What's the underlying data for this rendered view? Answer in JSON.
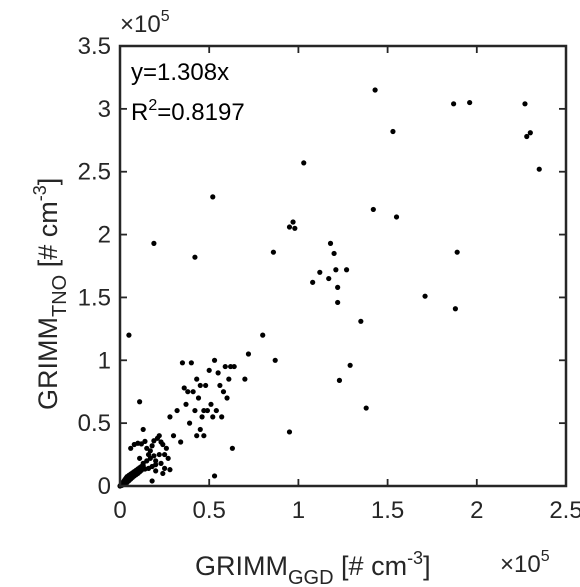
{
  "chart_data": {
    "type": "scatter",
    "title": "",
    "xlabel": {
      "main": "GRIMM",
      "sub": "GGD",
      "unit_pre": " [# cm",
      "unit_sup": "-3",
      "unit_post": "]"
    },
    "ylabel": {
      "main": "GRIMM",
      "sub": "TNO",
      "unit_pre": " [# cm",
      "unit_sup": "-3",
      "unit_post": "]"
    },
    "x_multiplier": {
      "base": "×10",
      "exp": "5"
    },
    "y_multiplier": {
      "base": "×10",
      "exp": "5"
    },
    "xlim": [
      0,
      250000
    ],
    "ylim": [
      0,
      350000
    ],
    "x_ticks": [
      0,
      50000,
      100000,
      150000,
      200000,
      250000
    ],
    "y_ticks": [
      0,
      50000,
      100000,
      150000,
      200000,
      250000,
      300000,
      350000
    ],
    "x_tick_labels": [
      "0",
      "0.5",
      "1",
      "1.5",
      "2",
      "2.5"
    ],
    "y_tick_labels": [
      "0",
      "0.5",
      "1",
      "1.5",
      "2",
      "2.5",
      "3",
      "3.5"
    ],
    "annotation_fit": "y=1.308x",
    "annotation_r2": {
      "pre": "R",
      "sup": "2",
      "post": "=0.8197"
    },
    "grid": false,
    "points": [
      [
        0,
        0
      ],
      [
        500,
        800
      ],
      [
        1000,
        1500
      ],
      [
        1500,
        2500
      ],
      [
        2000,
        3500
      ],
      [
        2500,
        4500
      ],
      [
        3000,
        5500
      ],
      [
        3500,
        6500
      ],
      [
        4000,
        7500
      ],
      [
        5000,
        8500
      ],
      [
        6000,
        9500
      ],
      [
        7000,
        10500
      ],
      [
        8000,
        11500
      ],
      [
        9000,
        12500
      ],
      [
        10000,
        13500
      ],
      [
        11000,
        14500
      ],
      [
        12000,
        15500
      ],
      [
        13000,
        16000
      ],
      [
        1000,
        500
      ],
      [
        2000,
        1200
      ],
      [
        3000,
        2000
      ],
      [
        4000,
        3000
      ],
      [
        5000,
        4200
      ],
      [
        6000,
        5500
      ],
      [
        7000,
        6800
      ],
      [
        8000,
        8000
      ],
      [
        9000,
        9000
      ],
      [
        10000,
        10000
      ],
      [
        11000,
        11200
      ],
      [
        12000,
        12500
      ],
      [
        14000,
        13500
      ],
      [
        16000,
        14000
      ],
      [
        18000,
        15500
      ],
      [
        20000,
        17000
      ],
      [
        6000,
        30000
      ],
      [
        8000,
        33000
      ],
      [
        10000,
        34000
      ],
      [
        12000,
        33500
      ],
      [
        14000,
        35500
      ],
      [
        15000,
        30000
      ],
      [
        17000,
        28000
      ],
      [
        18000,
        32000
      ],
      [
        19000,
        36000
      ],
      [
        21000,
        38000
      ],
      [
        22000,
        40000
      ],
      [
        23000,
        35000
      ],
      [
        24000,
        33000
      ],
      [
        26000,
        30000
      ],
      [
        25000,
        25000
      ],
      [
        27000,
        22000
      ],
      [
        11000,
        22000
      ],
      [
        13000,
        18000
      ],
      [
        15000,
        20000
      ],
      [
        17000,
        22000
      ],
      [
        20000,
        20000
      ],
      [
        22000,
        25000
      ],
      [
        16000,
        25000
      ],
      [
        19000,
        24000
      ],
      [
        23000,
        18000
      ],
      [
        25000,
        14000
      ],
      [
        13000,
        45000
      ],
      [
        11000,
        67000
      ],
      [
        18000,
        4000
      ],
      [
        20000,
        12000
      ],
      [
        24000,
        10000
      ],
      [
        28000,
        13000
      ],
      [
        5000,
        120000
      ],
      [
        19000,
        193000
      ],
      [
        42000,
        182000
      ],
      [
        52000,
        230000
      ],
      [
        28000,
        55000
      ],
      [
        30000,
        40000
      ],
      [
        32000,
        60000
      ],
      [
        34000,
        35000
      ],
      [
        35000,
        98000
      ],
      [
        36000,
        78000
      ],
      [
        37000,
        65000
      ],
      [
        38000,
        75000
      ],
      [
        39000,
        50000
      ],
      [
        40000,
        98000
      ],
      [
        41000,
        75000
      ],
      [
        42000,
        60000
      ],
      [
        43000,
        85000
      ],
      [
        44000,
        70000
      ],
      [
        45000,
        45000
      ],
      [
        46000,
        55000
      ],
      [
        47000,
        60000
      ],
      [
        48000,
        80000
      ],
      [
        49000,
        60000
      ],
      [
        50000,
        92000
      ],
      [
        51000,
        65000
      ],
      [
        52000,
        55000
      ],
      [
        53000,
        100000
      ],
      [
        54000,
        60000
      ],
      [
        55000,
        90000
      ],
      [
        56000,
        80000
      ],
      [
        57000,
        55000
      ],
      [
        58000,
        75000
      ],
      [
        59000,
        95000
      ],
      [
        60000,
        70000
      ],
      [
        61000,
        85000
      ],
      [
        62000,
        95000
      ],
      [
        63000,
        30000
      ],
      [
        64000,
        95000
      ],
      [
        45000,
        80000
      ],
      [
        47000,
        40000
      ],
      [
        43000,
        40000
      ],
      [
        53000,
        8000
      ],
      [
        70000,
        85000
      ],
      [
        72000,
        105000
      ],
      [
        80000,
        120000
      ],
      [
        87000,
        100000
      ],
      [
        86000,
        186000
      ],
      [
        95000,
        43000
      ],
      [
        97000,
        210000
      ],
      [
        95000,
        206000
      ],
      [
        98000,
        205000
      ],
      [
        103000,
        257000
      ],
      [
        108000,
        162000
      ],
      [
        112000,
        170000
      ],
      [
        117000,
        165000
      ],
      [
        118000,
        193000
      ],
      [
        120000,
        185000
      ],
      [
        121000,
        172000
      ],
      [
        122000,
        158000
      ],
      [
        122000,
        146000
      ],
      [
        123000,
        84000
      ],
      [
        127000,
        172000
      ],
      [
        129000,
        96000
      ],
      [
        135000,
        131000
      ],
      [
        138000,
        62000
      ],
      [
        142000,
        220000
      ],
      [
        143000,
        315000
      ],
      [
        153000,
        282000
      ],
      [
        155000,
        214000
      ],
      [
        171000,
        151000
      ],
      [
        187000,
        304000
      ],
      [
        188000,
        141000
      ],
      [
        189000,
        186000
      ],
      [
        196000,
        305000
      ],
      [
        227000,
        304000
      ],
      [
        228000,
        278000
      ],
      [
        230000,
        281000
      ],
      [
        235000,
        252000
      ]
    ]
  }
}
